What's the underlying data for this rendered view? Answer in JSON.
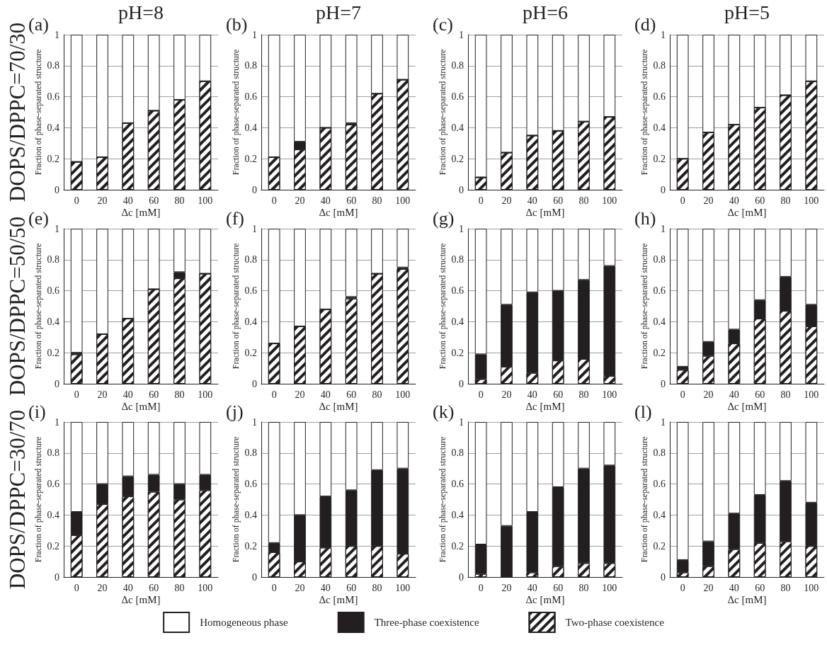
{
  "chart_data": [
    {
      "type": "bar",
      "title": "(a)",
      "subtitle": "pH=8",
      "annotations": [
        "DOPS/DPPC=70/30"
      ],
      "xlabel": "Δc [mM]",
      "ylabel": "Fraction of phase-separated structure",
      "categories": [
        "0",
        "20",
        "40",
        "60",
        "80",
        "100"
      ],
      "stacked": true,
      "ylim": [
        0,
        1
      ],
      "yticks": [
        0,
        0.2,
        0.4,
        0.6,
        0.8,
        1
      ],
      "grid": "y",
      "legend": false,
      "series": [
        {
          "color": "#231f20",
          "values": [
            0.18,
            0.21,
            0.43,
            0.51,
            0.58,
            0.7
          ]
        },
        {
          "color": "#231f20",
          "values": [
            0,
            0,
            0,
            0,
            0,
            0
          ]
        },
        {
          "color": "#ffffff",
          "values": [
            0.82,
            0.79,
            0.57,
            0.49,
            0.42,
            0.3
          ]
        }
      ]
    },
    {
      "type": "bar",
      "title": "(b)",
      "subtitle": "pH=7",
      "xlabel": "Δc [mM]",
      "ylabel": "Fraction of phase-separated structure",
      "categories": [
        "0",
        "20",
        "40",
        "60",
        "80",
        "100"
      ],
      "stacked": true,
      "ylim": [
        0,
        1
      ],
      "yticks": [
        0,
        0.2,
        0.4,
        0.6,
        0.8,
        1
      ],
      "grid": "y",
      "legend": false,
      "series": [
        {
          "color": "#231f20",
          "values": [
            0.21,
            0.26,
            0.4,
            0.42,
            0.62,
            0.71
          ]
        },
        {
          "color": "#231f20",
          "values": [
            0,
            0.05,
            0,
            0.01,
            0,
            0
          ]
        },
        {
          "color": "#ffffff",
          "values": [
            0.79,
            0.69,
            0.6,
            0.57,
            0.38,
            0.29
          ]
        }
      ]
    },
    {
      "type": "bar",
      "title": "(c)",
      "subtitle": "pH=6",
      "xlabel": "Δc [mM]",
      "ylabel": "Fraction of phase-separated structure",
      "categories": [
        "0",
        "20",
        "40",
        "60",
        "80",
        "100"
      ],
      "stacked": true,
      "ylim": [
        0,
        1
      ],
      "yticks": [
        0,
        0.2,
        0.4,
        0.6,
        0.8,
        1
      ],
      "grid": "y",
      "legend": false,
      "series": [
        {
          "color": "#231f20",
          "values": [
            0.08,
            0.24,
            0.35,
            0.38,
            0.44,
            0.47
          ]
        },
        {
          "color": "#231f20",
          "values": [
            0,
            0,
            0,
            0,
            0,
            0
          ]
        },
        {
          "color": "#ffffff",
          "values": [
            0.92,
            0.76,
            0.65,
            0.62,
            0.56,
            0.53
          ]
        }
      ]
    },
    {
      "type": "bar",
      "title": "(d)",
      "subtitle": "pH=5",
      "xlabel": "Δc [mM]",
      "ylabel": "Fraction of phase-separated structure",
      "categories": [
        "0",
        "20",
        "40",
        "60",
        "80",
        "100"
      ],
      "stacked": true,
      "ylim": [
        0,
        1
      ],
      "yticks": [
        0,
        0.2,
        0.4,
        0.6,
        0.8,
        1
      ],
      "grid": "y",
      "legend": false,
      "series": [
        {
          "color": "#231f20",
          "values": [
            0.2,
            0.37,
            0.42,
            0.53,
            0.61,
            0.7
          ]
        },
        {
          "color": "#231f20",
          "values": [
            0,
            0,
            0,
            0,
            0,
            0
          ]
        },
        {
          "color": "#ffffff",
          "values": [
            0.8,
            0.63,
            0.58,
            0.47,
            0.39,
            0.3
          ]
        }
      ]
    },
    {
      "type": "bar",
      "title": "(e)",
      "annotations": [
        "DOPS/DPPC=50/50"
      ],
      "xlabel": "Δc [mM]",
      "ylabel": "Fraction of phase-separated structure",
      "categories": [
        "0",
        "20",
        "40",
        "60",
        "80",
        "100"
      ],
      "stacked": true,
      "ylim": [
        0,
        1
      ],
      "yticks": [
        0,
        0.2,
        0.4,
        0.6,
        0.8,
        1
      ],
      "grid": "y",
      "legend": false,
      "series": [
        {
          "color": "#231f20",
          "values": [
            0.19,
            0.32,
            0.42,
            0.61,
            0.68,
            0.71
          ]
        },
        {
          "color": "#231f20",
          "values": [
            0.01,
            0,
            0,
            0,
            0.04,
            0
          ]
        },
        {
          "color": "#ffffff",
          "values": [
            0.8,
            0.68,
            0.58,
            0.39,
            0.28,
            0.29
          ]
        }
      ]
    },
    {
      "type": "bar",
      "title": "(f)",
      "xlabel": "Δc [mM]",
      "ylabel": "Fraction of phase-separated structure",
      "categories": [
        "0",
        "20",
        "40",
        "60",
        "80",
        "100"
      ],
      "stacked": true,
      "ylim": [
        0,
        1
      ],
      "yticks": [
        0,
        0.2,
        0.4,
        0.6,
        0.8,
        1
      ],
      "grid": "y",
      "legend": false,
      "series": [
        {
          "color": "#231f20",
          "values": [
            0.26,
            0.37,
            0.48,
            0.55,
            0.71,
            0.74
          ]
        },
        {
          "color": "#231f20",
          "values": [
            0,
            0,
            0,
            0.01,
            0,
            0.01
          ]
        },
        {
          "color": "#ffffff",
          "values": [
            0.74,
            0.63,
            0.52,
            0.44,
            0.29,
            0.25
          ]
        }
      ]
    },
    {
      "type": "bar",
      "title": "(g)",
      "xlabel": "Δc [mM]",
      "ylabel": "Fraction of phase-separated structure",
      "categories": [
        "0",
        "20",
        "40",
        "60",
        "80",
        "100"
      ],
      "stacked": true,
      "ylim": [
        0,
        1
      ],
      "yticks": [
        0,
        0.2,
        0.4,
        0.6,
        0.8,
        1
      ],
      "grid": "y",
      "legend": false,
      "series": [
        {
          "color": "#231f20",
          "values": [
            0.03,
            0.11,
            0.07,
            0.15,
            0.16,
            0.05
          ]
        },
        {
          "color": "#231f20",
          "values": [
            0.16,
            0.4,
            0.52,
            0.45,
            0.51,
            0.71
          ]
        },
        {
          "color": "#ffffff",
          "values": [
            0.81,
            0.49,
            0.41,
            0.4,
            0.33,
            0.24
          ]
        }
      ]
    },
    {
      "type": "bar",
      "title": "(h)",
      "xlabel": "Δc [mM]",
      "ylabel": "Fraction of phase-separated structure",
      "categories": [
        "0",
        "20",
        "40",
        "60",
        "80",
        "100"
      ],
      "stacked": true,
      "ylim": [
        0,
        1
      ],
      "yticks": [
        0,
        0.2,
        0.4,
        0.6,
        0.8,
        1
      ],
      "grid": "y",
      "legend": false,
      "series": [
        {
          "color": "#231f20",
          "values": [
            0.09,
            0.18,
            0.26,
            0.42,
            0.47,
            0.37
          ]
        },
        {
          "color": "#231f20",
          "values": [
            0.02,
            0.09,
            0.09,
            0.12,
            0.22,
            0.14
          ]
        },
        {
          "color": "#ffffff",
          "values": [
            0.89,
            0.73,
            0.65,
            0.46,
            0.31,
            0.49
          ]
        }
      ]
    },
    {
      "type": "bar",
      "title": "(i)",
      "annotations": [
        "DOPS/DPPC=30/70"
      ],
      "xlabel": "Δc [mM]",
      "ylabel": "Fraction of phase-separated structure",
      "categories": [
        "0",
        "20",
        "40",
        "60",
        "80",
        "100"
      ],
      "stacked": true,
      "ylim": [
        0,
        1
      ],
      "yticks": [
        0,
        0.2,
        0.4,
        0.6,
        0.8,
        1
      ],
      "grid": "y",
      "legend": false,
      "series": [
        {
          "color": "#231f20",
          "values": [
            0.27,
            0.47,
            0.52,
            0.55,
            0.5,
            0.56
          ]
        },
        {
          "color": "#231f20",
          "values": [
            0.15,
            0.13,
            0.13,
            0.11,
            0.1,
            0.1
          ]
        },
        {
          "color": "#ffffff",
          "values": [
            0.58,
            0.4,
            0.35,
            0.34,
            0.4,
            0.34
          ]
        }
      ]
    },
    {
      "type": "bar",
      "title": "(j)",
      "xlabel": "Δc [mM]",
      "ylabel": "Fraction of phase-separated structure",
      "categories": [
        "0",
        "20",
        "40",
        "60",
        "80",
        "100"
      ],
      "stacked": true,
      "ylim": [
        0,
        1
      ],
      "yticks": [
        0,
        0.2,
        0.4,
        0.6,
        0.8,
        1
      ],
      "grid": "y",
      "legend": false,
      "series": [
        {
          "color": "#231f20",
          "values": [
            0.16,
            0.1,
            0.19,
            0.2,
            0.2,
            0.15
          ]
        },
        {
          "color": "#231f20",
          "values": [
            0.06,
            0.3,
            0.33,
            0.36,
            0.49,
            0.55
          ]
        },
        {
          "color": "#ffffff",
          "values": [
            0.78,
            0.6,
            0.48,
            0.44,
            0.31,
            0.3
          ]
        }
      ]
    },
    {
      "type": "bar",
      "title": "(k)",
      "xlabel": "Δc [mM]",
      "ylabel": "Fraction of phase-separated structure",
      "categories": [
        "0",
        "20",
        "40",
        "60",
        "80",
        "100"
      ],
      "stacked": true,
      "ylim": [
        0,
        1
      ],
      "yticks": [
        0,
        0.2,
        0.4,
        0.6,
        0.8,
        1
      ],
      "grid": "y",
      "legend": false,
      "series": [
        {
          "color": "#231f20",
          "values": [
            0.02,
            0,
            0.03,
            0.07,
            0.09,
            0.09
          ]
        },
        {
          "color": "#231f20",
          "values": [
            0.19,
            0.33,
            0.39,
            0.51,
            0.61,
            0.63
          ]
        },
        {
          "color": "#ffffff",
          "values": [
            0.79,
            0.67,
            0.58,
            0.42,
            0.3,
            0.28
          ]
        }
      ]
    },
    {
      "type": "bar",
      "title": "(l)",
      "xlabel": "Δc [mM]",
      "ylabel": "Fraction of phase-separated structure",
      "categories": [
        "0",
        "20",
        "40",
        "60",
        "80",
        "100"
      ],
      "stacked": true,
      "ylim": [
        0,
        1
      ],
      "yticks": [
        0,
        0.2,
        0.4,
        0.6,
        0.8,
        1
      ],
      "grid": "y",
      "legend": "bottom",
      "series": [
        {
          "name": "Two-phase coexistence",
          "color": "#231f20",
          "values": [
            0.03,
            0.07,
            0.18,
            0.22,
            0.23,
            0.2
          ]
        },
        {
          "name": "Three-phase coexistence",
          "color": "#231f20",
          "values": [
            0.08,
            0.16,
            0.23,
            0.31,
            0.39,
            0.28
          ]
        },
        {
          "name": "Homogeneous phase",
          "color": "#ffffff",
          "values": [
            0.89,
            0.77,
            0.59,
            0.47,
            0.38,
            0.52
          ]
        }
      ]
    }
  ]
}
